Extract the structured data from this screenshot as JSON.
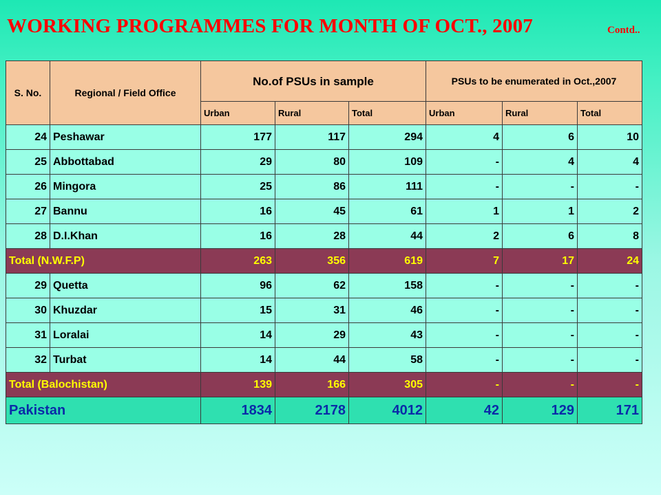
{
  "title": "WORKING PROGRAMMES FOR MONTH OF OCT., 2007",
  "contd": "Contd..",
  "table": {
    "headers": {
      "sno": "S. No.",
      "office": "Regional / Field Office",
      "sample": "No.of PSUs in sample",
      "enumerated": "PSUs to be enumerated in Oct.,2007",
      "urban": "Urban",
      "rural": "Rural",
      "total": "Total"
    },
    "rows": [
      {
        "sno": "24",
        "office": "Peshawar",
        "su": "177",
        "sr": "117",
        "st": "294",
        "eu": "4",
        "er": "6",
        "et": "10"
      },
      {
        "sno": "25",
        "office": "Abbottabad",
        "su": "29",
        "sr": "80",
        "st": "109",
        "eu": "-",
        "er": "4",
        "et": "4"
      },
      {
        "sno": "26",
        "office": "Mingora",
        "su": "25",
        "sr": "86",
        "st": "111",
        "eu": "-",
        "er": "-",
        "et": "-"
      },
      {
        "sno": "27",
        "office": "Bannu",
        "su": "16",
        "sr": "45",
        "st": "61",
        "eu": "1",
        "er": "1",
        "et": "2"
      },
      {
        "sno": "28",
        "office": "D.I.Khan",
        "su": "16",
        "sr": "28",
        "st": "44",
        "eu": "2",
        "er": "6",
        "et": "8"
      },
      {
        "total": true,
        "label": "Total (N.W.F.P)",
        "su": "263",
        "sr": "356",
        "st": "619",
        "eu": "7",
        "er": "17",
        "et": "24"
      },
      {
        "sno": "29",
        "office": "Quetta",
        "su": "96",
        "sr": "62",
        "st": "158",
        "eu": "-",
        "er": "-",
        "et": "-"
      },
      {
        "sno": "30",
        "office": "Khuzdar",
        "su": "15",
        "sr": "31",
        "st": "46",
        "eu": "-",
        "er": "-",
        "et": "-"
      },
      {
        "sno": "31",
        "office": "Loralai",
        "su": "14",
        "sr": "29",
        "st": "43",
        "eu": "-",
        "er": "-",
        "et": "-"
      },
      {
        "sno": "32",
        "office": "Turbat",
        "su": "14",
        "sr": "44",
        "st": "58",
        "eu": "-",
        "er": "-",
        "et": "-"
      },
      {
        "total": true,
        "label": "Total (Balochistan)",
        "su": "139",
        "sr": "166",
        "st": "305",
        "eu": "-",
        "er": "-",
        "et": "-"
      },
      {
        "grand": true,
        "label": "Pakistan",
        "su": "1834",
        "sr": "2178",
        "st": "4012",
        "eu": "42",
        "er": "129",
        "et": "171"
      }
    ]
  }
}
